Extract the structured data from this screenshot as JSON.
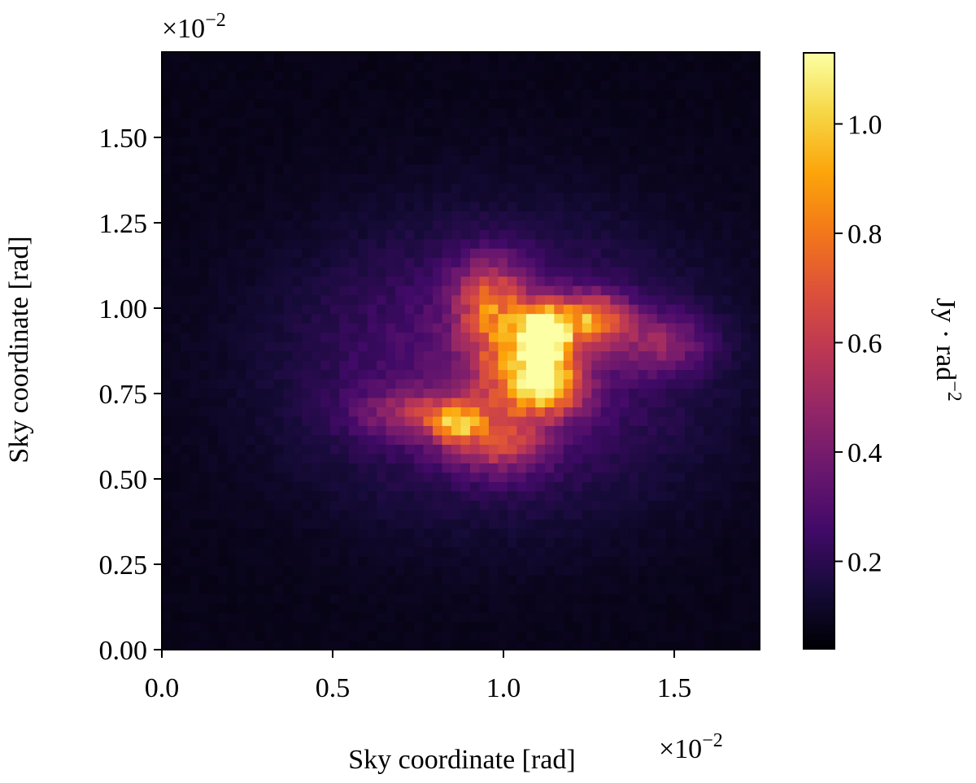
{
  "chart_data": {
    "type": "heatmap",
    "title": "",
    "xlabel": "Sky coordinate [rad]",
    "ylabel": "Sky coordinate [rad]",
    "x_multiplier": {
      "base": "×10",
      "exponent": "−2"
    },
    "y_multiplier": {
      "base": "×10",
      "exponent": "−2"
    },
    "xlim": [
      0.0,
      1.75
    ],
    "ylim": [
      0.0,
      1.75
    ],
    "x_ticks": [
      0.0,
      0.5,
      1.0,
      1.5
    ],
    "x_tick_labels": [
      "0.0",
      "0.5",
      "1.0",
      "1.5"
    ],
    "y_ticks": [
      0.0,
      0.25,
      0.5,
      0.75,
      1.0,
      1.25,
      1.5
    ],
    "y_tick_labels": [
      "0.00",
      "0.25",
      "0.50",
      "0.75",
      "1.00",
      "1.25",
      "1.50"
    ],
    "grid": false,
    "colormap": "inferno",
    "colorbar": {
      "label": "Jy · rad",
      "label_exponent": "−2",
      "range": [
        0.04,
        1.13
      ],
      "ticks": [
        0.2,
        0.4,
        0.6,
        0.8,
        1.0
      ],
      "tick_labels": [
        "0.2",
        "0.4",
        "0.6",
        "0.8",
        "1.0"
      ]
    },
    "background_level": 0.08,
    "features": [
      {
        "x": 1.12,
        "y": 0.92,
        "peak": 1.08,
        "sx": 0.05,
        "sy": 0.06
      },
      {
        "x": 1.26,
        "y": 0.97,
        "peak": 0.62,
        "sx": 0.07,
        "sy": 0.05
      },
      {
        "x": 1.14,
        "y": 0.78,
        "peak": 0.7,
        "sx": 0.07,
        "sy": 0.06
      },
      {
        "x": 0.86,
        "y": 0.67,
        "peak": 0.55,
        "sx": 0.05,
        "sy": 0.04
      },
      {
        "x": 0.74,
        "y": 0.69,
        "peak": 0.28,
        "sx": 0.12,
        "sy": 0.05
      },
      {
        "x": 0.96,
        "y": 1.02,
        "peak": 0.45,
        "sx": 0.07,
        "sy": 0.09
      },
      {
        "x": 1.02,
        "y": 0.82,
        "peak": 0.4,
        "sx": 0.08,
        "sy": 0.12
      },
      {
        "x": 0.98,
        "y": 0.6,
        "peak": 0.32,
        "sx": 0.1,
        "sy": 0.06
      },
      {
        "x": 1.46,
        "y": 0.9,
        "peak": 0.28,
        "sx": 0.1,
        "sy": 0.06
      },
      {
        "x": 0.98,
        "y": 0.83,
        "peak": 0.26,
        "sx": 0.4,
        "sy": 0.28
      }
    ]
  }
}
